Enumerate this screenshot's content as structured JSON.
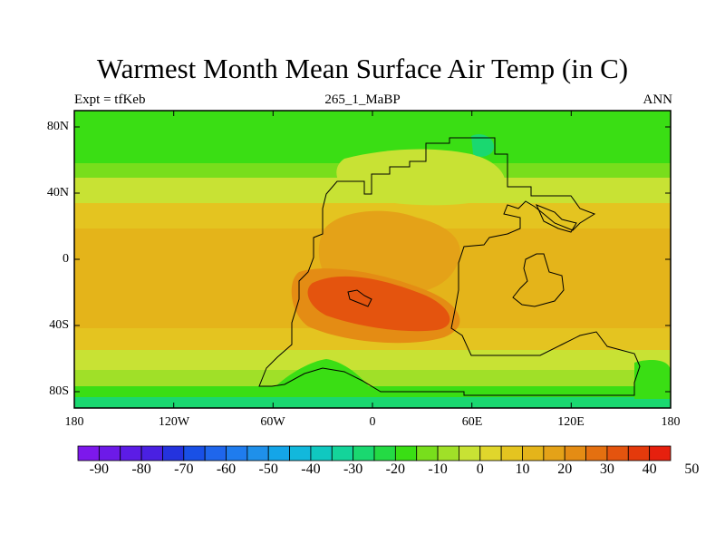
{
  "title": "Warmest Month Mean Surface Air Temp (in C)",
  "subtitle_left": "Expt = tfKeb",
  "subtitle_center": "265_1_MaBP",
  "subtitle_right": "ANN",
  "y_ticks": [
    "80N",
    "40N",
    "0",
    "40S",
    "80S"
  ],
  "x_ticks": [
    "180",
    "120W",
    "60W",
    "0",
    "60E",
    "120E",
    "180"
  ],
  "colorbar": {
    "labels": [
      "-90",
      "-80",
      "-70",
      "-60",
      "-50",
      "-40",
      "-30",
      "-20",
      "-10",
      "0",
      "10",
      "20",
      "30",
      "40",
      "50"
    ],
    "colors": [
      "#7d18ec",
      "#6d1ae8",
      "#5c1ce6",
      "#4a20e2",
      "#2433de",
      "#1950e6",
      "#1f66ec",
      "#1f7cee",
      "#1f90ea",
      "#14a5e8",
      "#12b8dc",
      "#10c8c0",
      "#14d49a",
      "#1ad870",
      "#24da44",
      "#3ade14",
      "#78de1c",
      "#a0e028",
      "#c8e234",
      "#e0d62c",
      "#e4c420",
      "#e4b41a",
      "#e4a218",
      "#e48c14",
      "#e47010",
      "#e4540e",
      "#e43a0c",
      "#e6200e"
    ]
  },
  "legend_colors": {
    "land_outline": "#000000",
    "band_cold": "#3ade14",
    "band_mid": "#c8e234",
    "band_warm": "#e4b41a",
    "hot_core": "#e4540e"
  }
}
